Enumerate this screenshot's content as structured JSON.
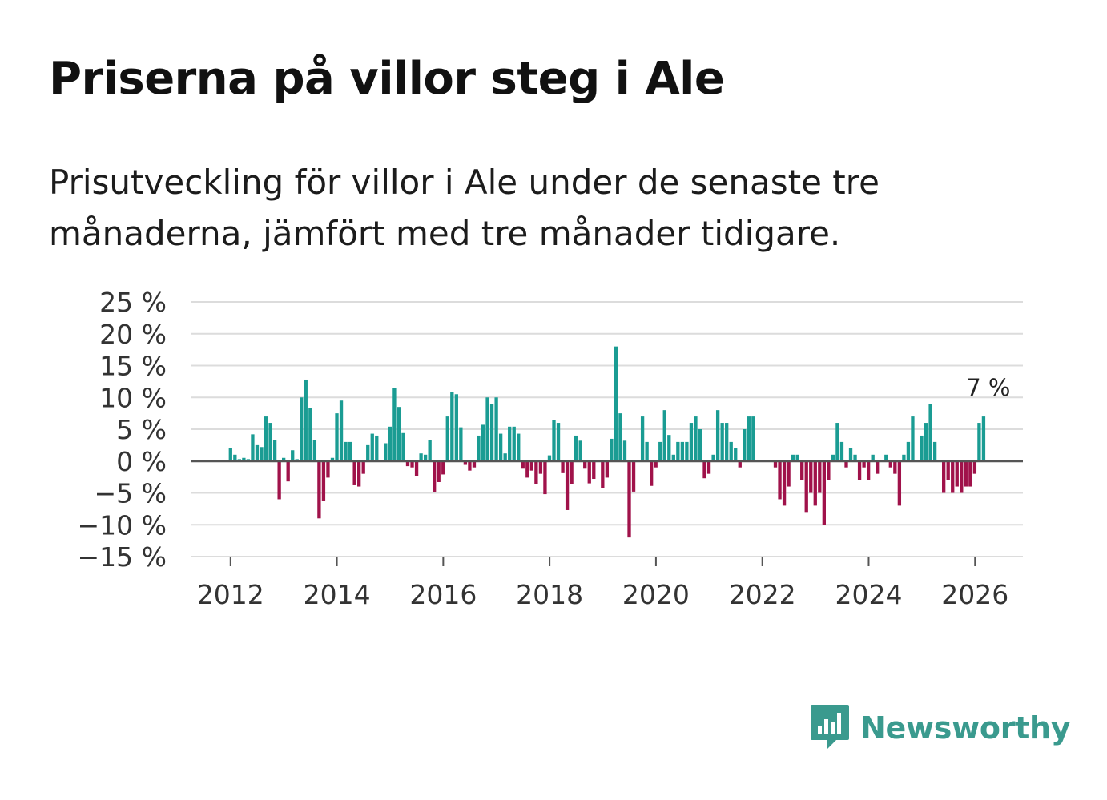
{
  "title": "Priserna på villor steg i Ale",
  "subtitle": "Prisutveckling för villor i Ale under de senaste tre månaderna, jämfört med tre månader tidigare.",
  "brand": {
    "name": "Newsworthy",
    "icon": "newsworthy-logo-icon",
    "color": "#3a9a8e"
  },
  "colors": {
    "positive": "#1a9c93",
    "negative": "#a0124a",
    "grid": "#dcdcdc",
    "zero": "#555555"
  },
  "chart_data": {
    "type": "bar",
    "title": "Priserna på villor steg i Ale",
    "xlabel": "",
    "ylabel": "",
    "ylim": [
      -15,
      25
    ],
    "xlim": [
      2011.25,
      2026.9
    ],
    "y_ticks": [
      25,
      20,
      15,
      10,
      5,
      0,
      -5,
      -10,
      -15
    ],
    "y_tick_labels": [
      "25 %",
      "20 %",
      "15 %",
      "10 %",
      "5 %",
      "0 %",
      "−5 %",
      "−10 %",
      "−15 %"
    ],
    "x_ticks": [
      2012,
      2014,
      2016,
      2018,
      2020,
      2022,
      2024,
      2026
    ],
    "x_tick_labels": [
      "2012",
      "2014",
      "2016",
      "2018",
      "2020",
      "2022",
      "2024",
      "2026"
    ],
    "grid": true,
    "annotation": {
      "text": "7 %",
      "x": 2026.1,
      "value": 7
    },
    "series": [
      {
        "name": "Prisutveckling",
        "start": 2012.0,
        "step": 0.0833,
        "values": [
          2,
          1,
          0.3,
          0.5,
          0.3,
          4.2,
          2.5,
          2.2,
          7,
          6,
          3.3,
          -6,
          0.5,
          -3.2,
          1.7,
          0.3,
          10,
          12.8,
          8.3,
          3.3,
          -9,
          -6.3,
          -2.6,
          0.5,
          7.5,
          9.5,
          3,
          3,
          -3.8,
          -4,
          -2,
          2.5,
          4.3,
          4,
          0,
          2.8,
          5.4,
          11.5,
          8.5,
          4.4,
          -0.8,
          -1,
          -2.3,
          1.2,
          1,
          3.3,
          -4.9,
          -3.3,
          -2.1,
          7,
          10.8,
          10.5,
          5.3,
          -0.6,
          -1.5,
          -1,
          4,
          5.7,
          10,
          8.9,
          10,
          4.3,
          1.2,
          5.4,
          5.4,
          4.3,
          -1.2,
          -2.6,
          -1.5,
          -3.6,
          -2,
          -5.2,
          0.9,
          6.5,
          6,
          -1.9,
          -7.7,
          -3.6,
          4,
          3.2,
          -1.2,
          -3.5,
          -2.8,
          0,
          -4.3,
          -2.6,
          3.5,
          18,
          7.5,
          3.2,
          -12,
          -4.8,
          0,
          7,
          3,
          -3.9,
          -1,
          3,
          8,
          4.1,
          1,
          3,
          3,
          3,
          6,
          7,
          5,
          -2.7,
          -2,
          1,
          8,
          6,
          6,
          3,
          2,
          -1,
          5,
          7,
          7,
          0,
          0,
          0,
          0,
          -1,
          -6,
          -7,
          -4,
          1,
          1,
          -3,
          -8,
          -5,
          -7,
          -5,
          -10,
          -3,
          1,
          6,
          3,
          -1,
          2,
          1,
          -3,
          -1,
          -3,
          1,
          -2,
          0,
          1,
          -1,
          -2,
          -7,
          1,
          3,
          7,
          0,
          4,
          6,
          9,
          3,
          0,
          -5,
          -3,
          -5,
          -4,
          -5,
          -4,
          -4,
          -2,
          6,
          7
        ]
      }
    ]
  }
}
